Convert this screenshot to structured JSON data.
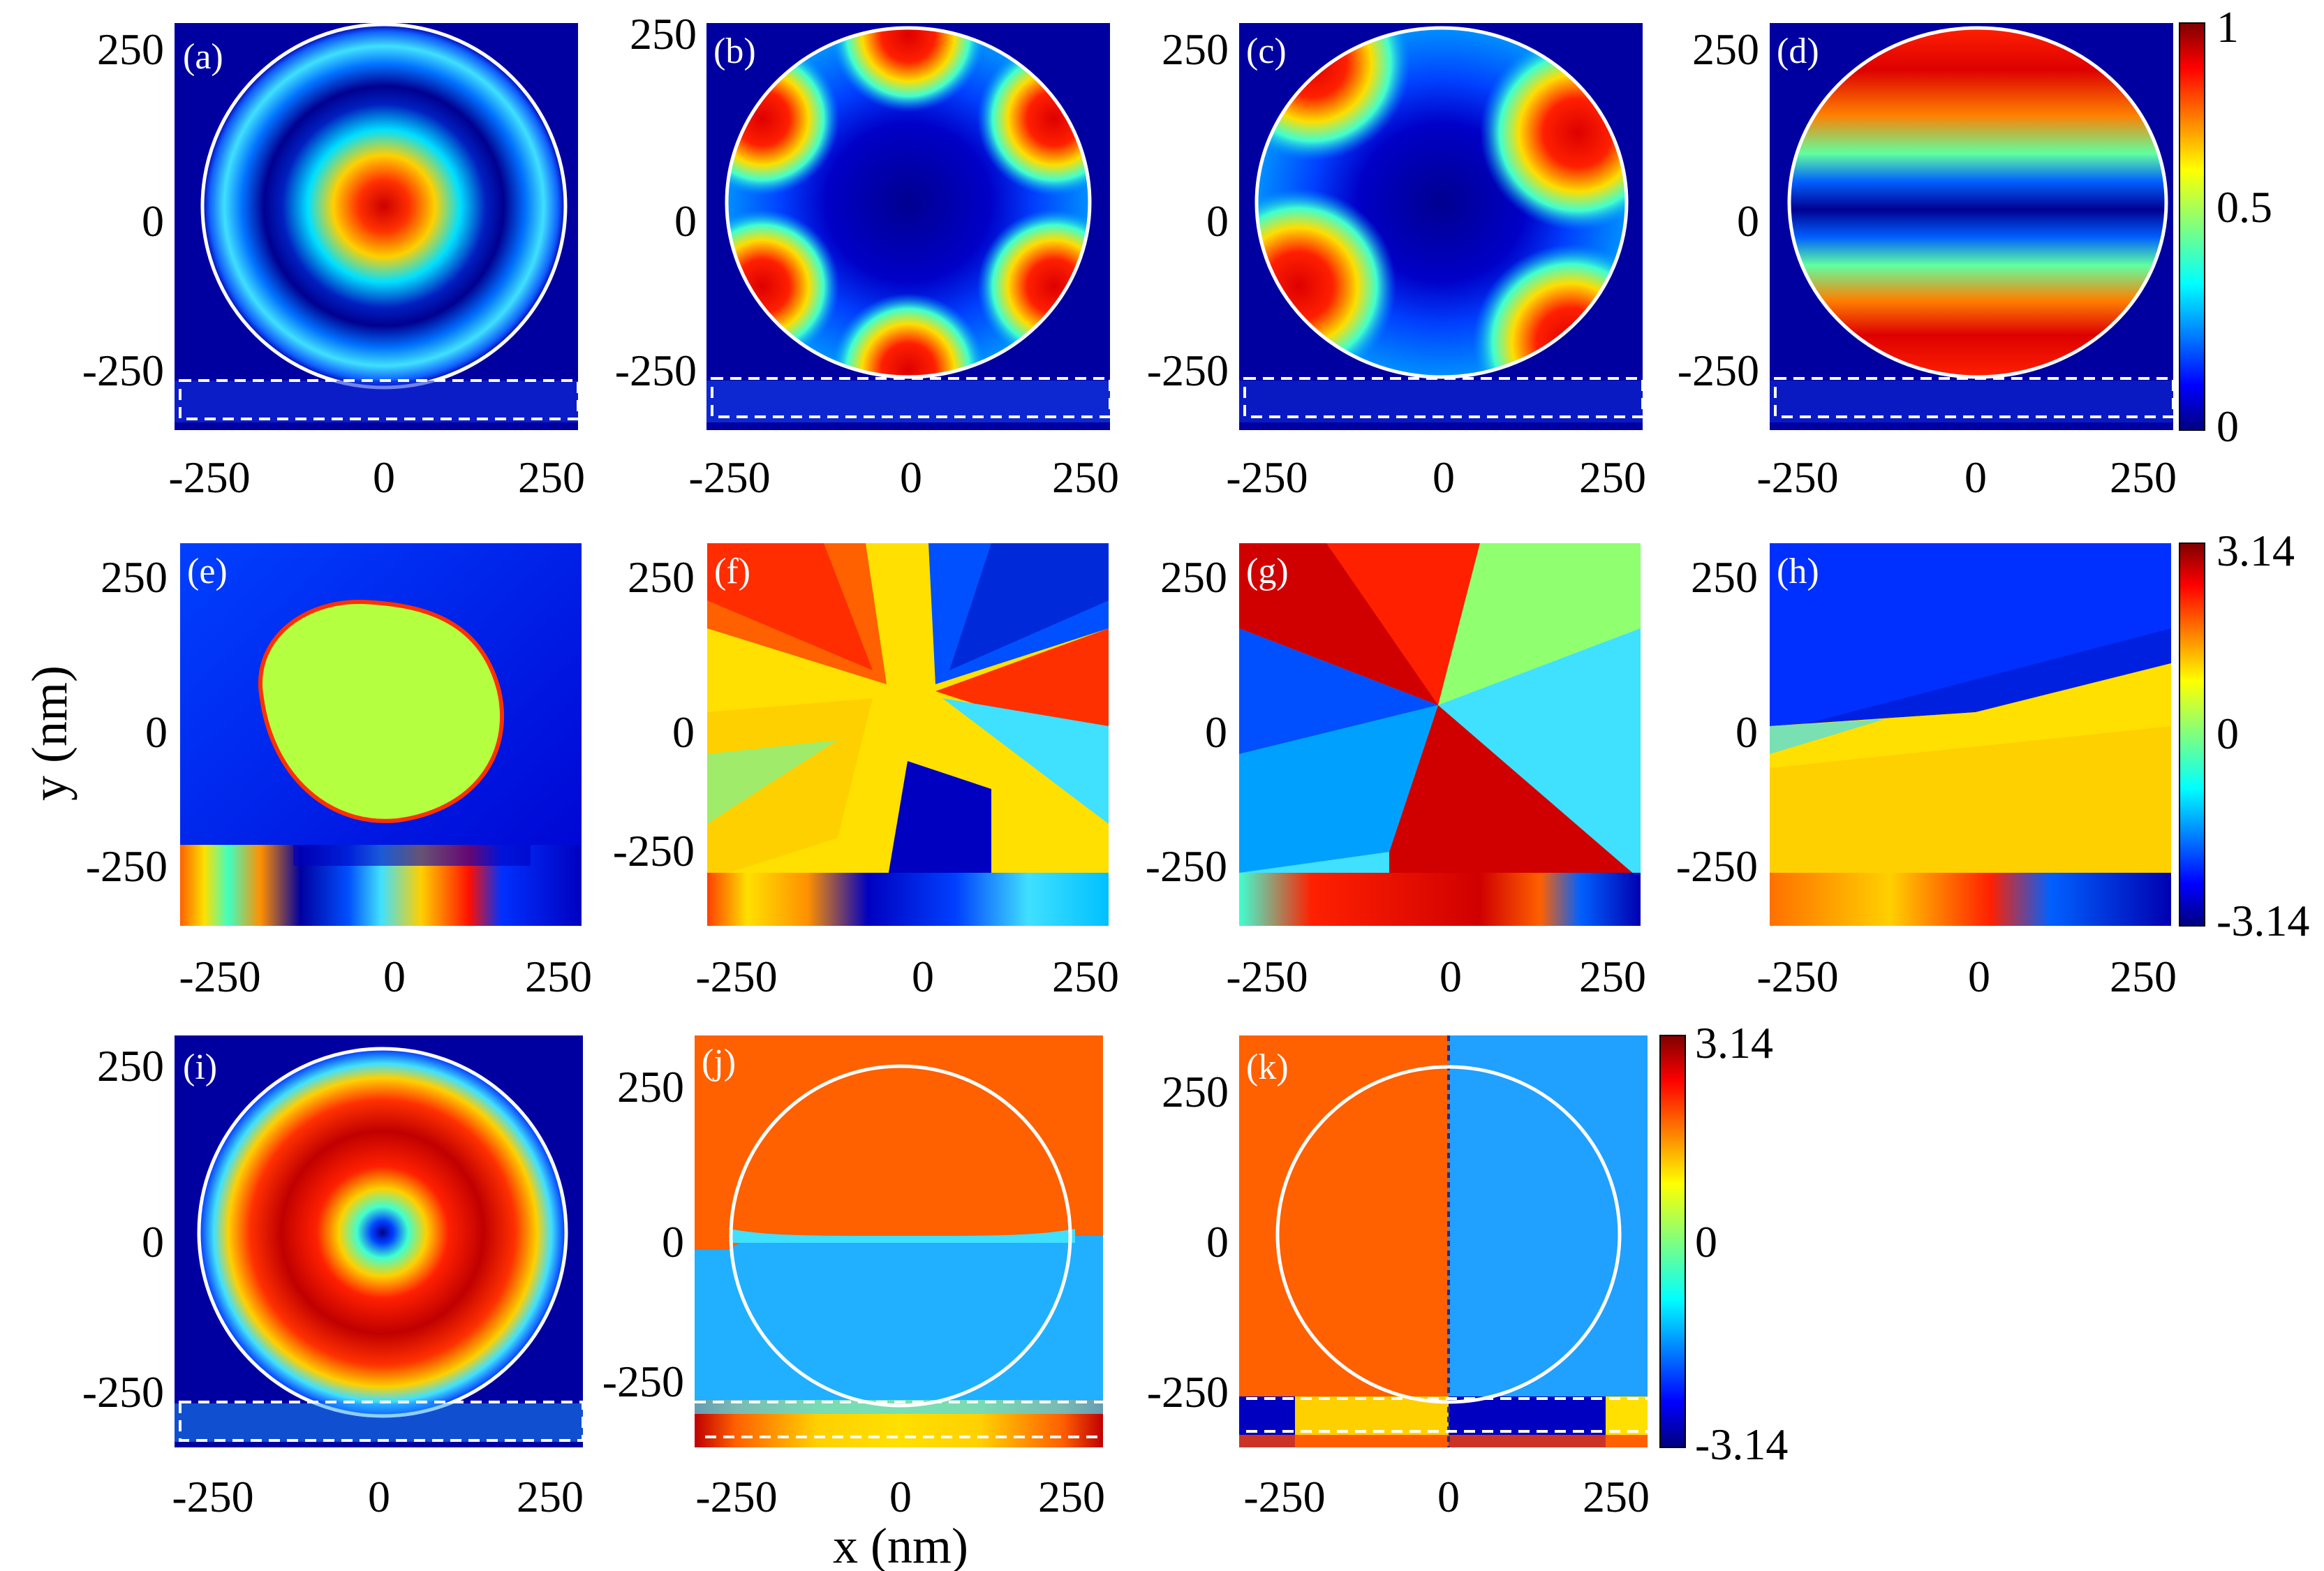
{
  "chart_data": [
    {
      "type": "heatmap",
      "panel": "(a)",
      "quantity": "normalized field intensity",
      "x_ticks": [
        "-250",
        "0",
        "250"
      ],
      "y_ticks": [
        "250",
        "0",
        "-250"
      ],
      "xlim": [
        -300,
        300
      ],
      "ylim": [
        -370,
        300
      ],
      "pattern": "central maximum with one concentric ring inside circular particle",
      "colorbar": null
    },
    {
      "type": "heatmap",
      "panel": "(b)",
      "quantity": "normalized field intensity",
      "x_ticks": [
        "-250",
        "0",
        "250"
      ],
      "y_ticks": [
        "250",
        "0",
        "-250"
      ],
      "xlim": [
        -300,
        300
      ],
      "ylim": [
        -370,
        300
      ],
      "pattern": "six lobes along particle edge around six-point star minimum",
      "colorbar": null
    },
    {
      "type": "heatmap",
      "panel": "(c)",
      "quantity": "normalized field intensity",
      "x_ticks": [
        "-250",
        "0",
        "250"
      ],
      "y_ticks": [
        "250",
        "0",
        "-250"
      ],
      "xlim": [
        -300,
        300
      ],
      "ylim": [
        -370,
        300
      ],
      "pattern": "four lobes along particle edge around four-point star minimum",
      "colorbar": null
    },
    {
      "type": "heatmap",
      "panel": "(d)",
      "quantity": "normalized field intensity",
      "x_ticks": [
        "-250",
        "0",
        "250"
      ],
      "y_ticks": [
        "250",
        "0",
        "-250"
      ],
      "xlim": [
        -300,
        300
      ],
      "ylim": [
        -370,
        300
      ],
      "pattern": "two lobes at top and bottom of particle",
      "colorbar": {
        "ticks": [
          "1",
          "0.5",
          "0"
        ],
        "range": [
          0,
          1
        ]
      }
    },
    {
      "type": "heatmap",
      "panel": "(e)",
      "quantity": "phase",
      "x_ticks": [
        "-250",
        "0",
        "250"
      ],
      "y_ticks": [
        "250",
        "0",
        "-250"
      ],
      "xlim": [
        -300,
        300
      ],
      "ylim": [
        -370,
        300
      ],
      "colorbar": null
    },
    {
      "type": "heatmap",
      "panel": "(f)",
      "quantity": "phase",
      "x_ticks": [
        "-250",
        "0",
        "250"
      ],
      "y_ticks": [
        "250",
        "0",
        "-250"
      ],
      "xlim": [
        -300,
        300
      ],
      "ylim": [
        -370,
        300
      ],
      "colorbar": null
    },
    {
      "type": "heatmap",
      "panel": "(g)",
      "quantity": "phase",
      "x_ticks": [
        "-250",
        "0",
        "250"
      ],
      "y_ticks": [
        "250",
        "0",
        "-250"
      ],
      "xlim": [
        -300,
        300
      ],
      "ylim": [
        -370,
        300
      ],
      "colorbar": null
    },
    {
      "type": "heatmap",
      "panel": "(h)",
      "quantity": "phase",
      "x_ticks": [
        "-250",
        "0",
        "250"
      ],
      "y_ticks": [
        "250",
        "0",
        "-250"
      ],
      "xlim": [
        -300,
        300
      ],
      "ylim": [
        -370,
        300
      ],
      "colorbar": {
        "ticks": [
          "3.14",
          "0",
          "-3.14"
        ],
        "range": [
          -3.14,
          3.14
        ]
      }
    },
    {
      "type": "heatmap",
      "panel": "(i)",
      "quantity": "normalized field intensity",
      "x_ticks": [
        "-250",
        "0",
        "250"
      ],
      "y_ticks": [
        "250",
        "0",
        "-250"
      ],
      "xlim": [
        -300,
        300
      ],
      "ylim": [
        -370,
        300
      ],
      "pattern": "doughnut ring with central minimum",
      "colorbar": null
    },
    {
      "type": "heatmap",
      "panel": "(j)",
      "quantity": "phase",
      "x_ticks": [
        "-250",
        "0",
        "250"
      ],
      "y_ticks": [
        "250",
        "0",
        "-250"
      ],
      "xlim": [
        -300,
        300
      ],
      "ylim": [
        -370,
        300
      ],
      "colorbar": null
    },
    {
      "type": "heatmap",
      "panel": "(k)",
      "quantity": "phase",
      "x_ticks": [
        "-250",
        "0",
        "250"
      ],
      "y_ticks": [
        "250",
        "0",
        "-250"
      ],
      "xlim": [
        -300,
        300
      ],
      "ylim": [
        -370,
        300
      ],
      "colorbar": {
        "ticks": [
          "3.14",
          "0",
          "-3.14"
        ],
        "range": [
          -3.14,
          3.14
        ]
      }
    }
  ],
  "labels": {
    "a": "(a)",
    "b": "(b)",
    "c": "(c)",
    "d": "(d)",
    "e": "(e)",
    "f": "(f)",
    "g": "(g)",
    "h": "(h)",
    "i": "(i)",
    "j": "(j)",
    "k": "(k)"
  },
  "xlabel": "x (nm)",
  "ylabel": "y (nm)",
  "ticks": {
    "neg": "-250",
    "zero": "0",
    "pos": "250"
  },
  "colorbars": {
    "intensity": {
      "top": "1",
      "mid": "0.5",
      "bot": "0"
    },
    "phase_h": {
      "top": "3.14",
      "mid": "0",
      "bot": "-3.14"
    },
    "phase_k": {
      "top": "3.14",
      "mid": "0",
      "bot": "-3.14"
    }
  },
  "colors": {
    "jet_dark_blue": "#00007f",
    "jet_blue": "#0000ff",
    "jet_cyan": "#00ffff",
    "jet_yellow": "#ffff00",
    "jet_red": "#ff0000",
    "jet_dark_red": "#7f0000",
    "outline": "#ffffff"
  }
}
